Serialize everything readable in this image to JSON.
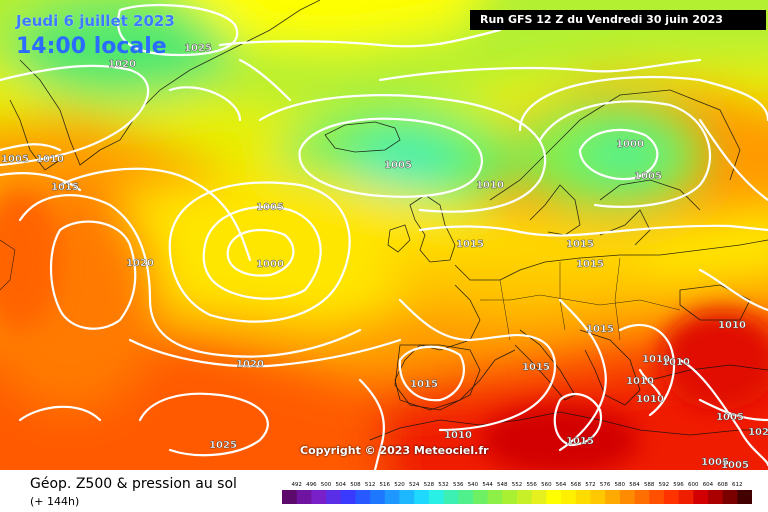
{
  "header": {
    "date": "Jeudi 6 juillet 2023",
    "local_time": "14:00 locale",
    "run_info": "Run GFS 12 Z du Vendredi 30 juin 2023"
  },
  "copyright": "Copyright © 2023 Meteociel.fr",
  "footer": {
    "title": "Géop. Z500 & pression au sol",
    "subtitle": "(+ 144h)"
  },
  "pressure_labels": [
    "1025",
    "1020",
    "1005",
    "1010",
    "1015",
    "1020",
    "1005",
    "1000",
    "1005",
    "1010",
    "1000",
    "1005",
    "1015",
    "1015",
    "1015",
    "1020",
    "1015",
    "1015",
    "1010",
    "1010",
    "1010",
    "1010",
    "1010",
    "1015",
    "1005",
    "1010",
    "1015",
    "1025",
    "1005",
    "1020",
    "1005"
  ],
  "legend": {
    "ticks": [
      "492",
      "496",
      "500",
      "504",
      "508",
      "512",
      "516",
      "520",
      "524",
      "528",
      "532",
      "536",
      "540",
      "544",
      "548",
      "552",
      "556",
      "560",
      "564",
      "568",
      "572",
      "576",
      "580",
      "584",
      "588",
      "592",
      "596",
      "600",
      "604",
      "608",
      "612"
    ],
    "colors": [
      "#5c0a6b",
      "#6e14a0",
      "#7a20c8",
      "#5a2ee6",
      "#3a3aff",
      "#2858ff",
      "#1e78ff",
      "#1e98ff",
      "#1eb8ff",
      "#1ed8ff",
      "#28f0e6",
      "#3cf0b4",
      "#50f08c",
      "#6ef064",
      "#8cf046",
      "#aaf032",
      "#c8f028",
      "#e6f01e",
      "#ffff00",
      "#fff000",
      "#ffdc00",
      "#ffc800",
      "#ffaa00",
      "#ff8c00",
      "#ff6e00",
      "#ff5000",
      "#ff3200",
      "#f01e00",
      "#d20000",
      "#aa0000",
      "#7a0000",
      "#420000"
    ]
  }
}
